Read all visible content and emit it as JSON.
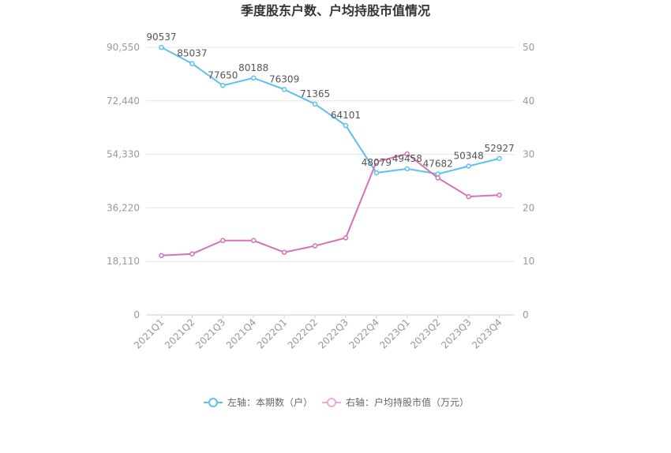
{
  "chart_data": {
    "type": "line",
    "title": "季度股东户数、户均持股市值情况",
    "categories": [
      "2021Q1",
      "2021Q2",
      "2021Q3",
      "2021Q4",
      "2022Q1",
      "2022Q2",
      "2022Q3",
      "2022Q4",
      "2023Q1",
      "2023Q2",
      "2023Q3",
      "2023Q4"
    ],
    "left_axis": {
      "ticks": [
        "0",
        "18,110",
        "36,220",
        "54,330",
        "72,440",
        "90,550"
      ],
      "ylim": [
        0,
        90550
      ]
    },
    "right_axis": {
      "ticks": [
        "0",
        "10",
        "20",
        "30",
        "40",
        "50"
      ],
      "ylim": [
        0,
        50
      ]
    },
    "series": [
      {
        "name": "左轴：本期数（户）",
        "axis": "left",
        "color": "#5bc1f0",
        "values": [
          90537,
          85037,
          77650,
          80188,
          76309,
          71365,
          64101,
          48079,
          49458,
          47682,
          50348,
          52927
        ],
        "labels": [
          "90537",
          "85037",
          "77650",
          "80188",
          "76309",
          "71365",
          "64101",
          "48079",
          "49458",
          "47682",
          "50348",
          "52927"
        ]
      },
      {
        "name": "右轴：户均持股市值（万元）",
        "axis": "right",
        "color": "#d771b5",
        "values": [
          11.1,
          11.4,
          13.9,
          13.9,
          11.7,
          12.9,
          14.4,
          28.6,
          30.1,
          25.6,
          22.1,
          22.4
        ]
      }
    ],
    "grid": true,
    "legend_position": "bottom-center"
  }
}
